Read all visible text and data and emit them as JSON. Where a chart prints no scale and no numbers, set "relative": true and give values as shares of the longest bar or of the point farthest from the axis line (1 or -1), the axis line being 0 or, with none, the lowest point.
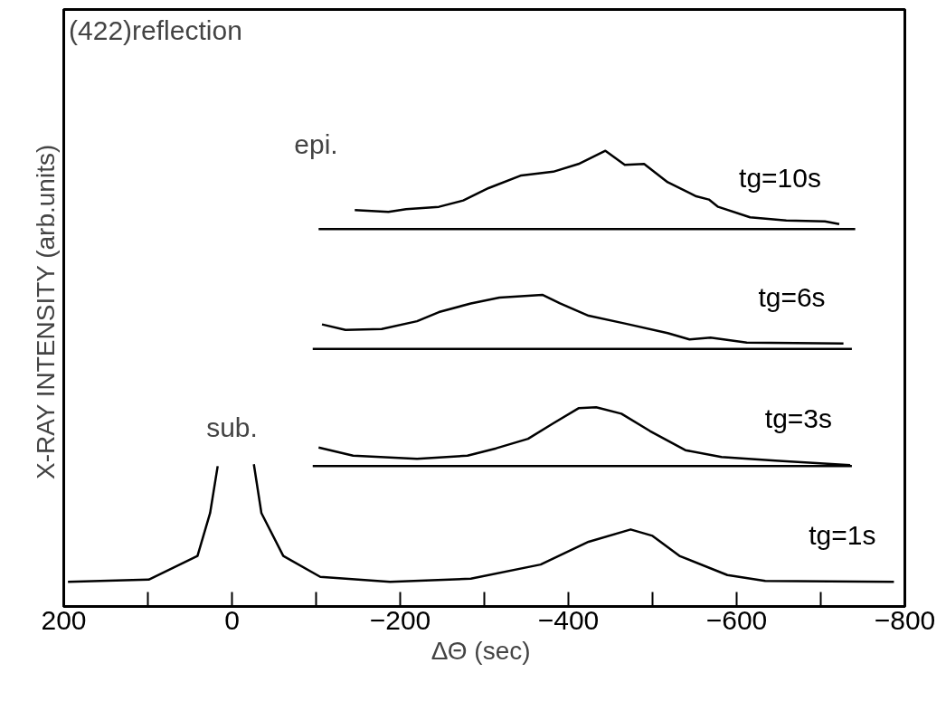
{
  "chart_data": {
    "type": "line",
    "relative": true,
    "xlabel": "ΔΘ  (sec)",
    "ylabel": "X-RAY INTENSITY  (arb.units)",
    "xlim": [
      200,
      -800
    ],
    "xticks": [
      200,
      {
        "value": 100,
        "label": null
      },
      0,
      {
        "value": -100,
        "label": null
      },
      -200,
      {
        "value": -300,
        "label": null
      },
      -400,
      {
        "value": -500,
        "label": null
      },
      -600,
      {
        "value": -700,
        "label": null
      },
      -800
    ],
    "tick_labels": "x",
    "grid": false,
    "line_style": "solid",
    "marker": "none",
    "series": [
      {
        "name": "tg=1s",
        "color": "#000000",
        "x": [
          195,
          99,
          41,
          26,
          17,
          null,
          -26,
          -35,
          -61,
          -105,
          -188,
          -284,
          -367,
          -424,
          -474,
          -500,
          -532,
          -589,
          -634,
          -787
        ],
        "values": [
          0.054,
          0.059,
          0.111,
          0.205,
          0.308,
          null,
          0.312,
          0.205,
          0.111,
          0.065,
          0.054,
          0.061,
          0.092,
          0.142,
          0.169,
          0.155,
          0.111,
          0.069,
          0.056,
          0.054
        ]
      },
      {
        "name": "tg=3s",
        "color": "#000000",
        "x": [
          -103,
          -144,
          -220,
          -280,
          -314,
          -352,
          -382,
          -412,
          -433,
          -463,
          -497,
          -539,
          -582,
          -646,
          -735
        ],
        "values": [
          0.349,
          0.331,
          0.324,
          0.331,
          0.347,
          0.368,
          0.402,
          0.435,
          0.437,
          0.423,
          0.385,
          0.343,
          0.328,
          0.32,
          0.31
        ]
      },
      {
        "color": "#000000",
        "x": [
          -96,
          -737
        ],
        "values": [
          0.308,
          0.308
        ]
      },
      {
        "name": "tg=6s",
        "color": "#000000",
        "x": [
          -107,
          -135,
          -178,
          -220,
          -246,
          -284,
          -318,
          -369,
          -390,
          -424,
          -467,
          -518,
          -544,
          -569,
          -612,
          -727
        ],
        "values": [
          0.619,
          0.607,
          0.609,
          0.626,
          0.646,
          0.665,
          0.678,
          0.684,
          0.665,
          0.638,
          0.621,
          0.6,
          0.586,
          0.59,
          0.579,
          0.577
        ]
      },
      {
        "color": "#000000",
        "x": [
          -96,
          -737
        ],
        "values": [
          0.565,
          0.565
        ]
      },
      {
        "name": "tg=10s",
        "color": "#000000",
        "x": [
          -146,
          -186,
          -207,
          -246,
          -275,
          -305,
          -344,
          -382,
          -412,
          -444,
          -467,
          -490,
          -518,
          -552,
          -567,
          -578,
          -616,
          -659,
          -705,
          -722
        ],
        "values": [
          0.87,
          0.866,
          0.872,
          0.877,
          0.891,
          0.918,
          0.946,
          0.954,
          0.971,
          1.0,
          0.969,
          0.971,
          0.931,
          0.9,
          0.893,
          0.877,
          0.854,
          0.847,
          0.845,
          0.839
        ]
      },
      {
        "color": "#000000",
        "x": [
          -103,
          -741
        ],
        "values": [
          0.828,
          0.828
        ]
      }
    ],
    "annotations": [
      "(422)reflection",
      "sub.",
      "epi."
    ]
  }
}
